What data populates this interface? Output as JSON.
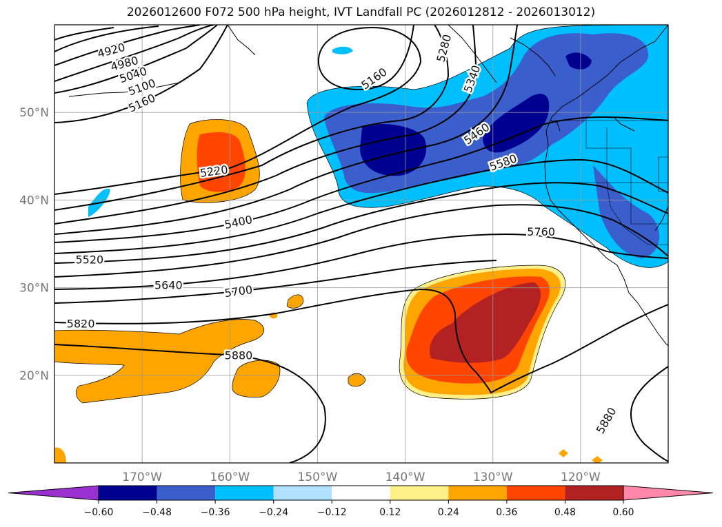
{
  "title": "2026012600 F072 500 hPa height, IVT Landfall PC (2026012812 - 2026013012)",
  "map": {
    "lon_range": [
      -180,
      -110
    ],
    "lat_range": [
      10,
      60
    ],
    "lon_ticks": [
      {
        "lon": -170,
        "label": "170°W"
      },
      {
        "lon": -160,
        "label": "160°W"
      },
      {
        "lon": -150,
        "label": "150°W"
      },
      {
        "lon": -140,
        "label": "140°W"
      },
      {
        "lon": -130,
        "label": "130°W"
      },
      {
        "lon": -120,
        "label": "120°W"
      }
    ],
    "lat_ticks": [
      {
        "lat": 20,
        "label": "20°N"
      },
      {
        "lat": 30,
        "label": "30°N"
      },
      {
        "lat": 40,
        "label": "40°N"
      },
      {
        "lat": 50,
        "label": "50°N"
      }
    ],
    "grid": true
  },
  "contour_labels": [
    {
      "text": "4920",
      "lon": -173.5,
      "lat": 57.0,
      "angle": -15
    },
    {
      "text": "4980",
      "lon": -172.0,
      "lat": 55.5,
      "angle": -15
    },
    {
      "text": "5040",
      "lon": -171.0,
      "lat": 54.2,
      "angle": -18
    },
    {
      "text": "5100",
      "lon": -170.0,
      "lat": 52.8,
      "angle": -20
    },
    {
      "text": "5160",
      "lon": -170.0,
      "lat": 51.0,
      "angle": -25
    },
    {
      "text": "5160",
      "lon": -143.5,
      "lat": 53.8,
      "angle": -35
    },
    {
      "text": "5220",
      "lon": -161.8,
      "lat": 43.2,
      "angle": -8
    },
    {
      "text": "5280",
      "lon": -135.5,
      "lat": 57.3,
      "angle": -75
    },
    {
      "text": "5340",
      "lon": -132.3,
      "lat": 53.8,
      "angle": -70
    },
    {
      "text": "5400",
      "lon": -159.0,
      "lat": 37.4,
      "angle": -12
    },
    {
      "text": "5460",
      "lon": -131.8,
      "lat": 47.5,
      "angle": -35
    },
    {
      "text": "5520",
      "lon": -176.0,
      "lat": 33.1,
      "angle": 0
    },
    {
      "text": "5580",
      "lon": -128.8,
      "lat": 44.2,
      "angle": -20
    },
    {
      "text": "5640",
      "lon": -167.0,
      "lat": 30.2,
      "angle": 0
    },
    {
      "text": "5700",
      "lon": -159.0,
      "lat": 29.5,
      "angle": -8
    },
    {
      "text": "5760",
      "lon": -124.5,
      "lat": 36.3,
      "angle": 0
    },
    {
      "text": "5820",
      "lon": -177.0,
      "lat": 25.8,
      "angle": 0
    },
    {
      "text": "5880",
      "lon": -159.0,
      "lat": 22.2,
      "angle": 0
    },
    {
      "text": "5880",
      "lon": -117.0,
      "lat": 14.8,
      "angle": -60
    }
  ],
  "colorbar": {
    "ticks": [
      "−0.60",
      "−0.48",
      "−0.36",
      "−0.24",
      "−0.12",
      "0.12",
      "0.24",
      "0.36",
      "0.48",
      "0.60"
    ],
    "colors": [
      "#9b30d0",
      "#000090",
      "#3a5fcd",
      "#00bfff",
      "#b0e2ff",
      "#ffffff",
      "#fff08a",
      "#ffa500",
      "#ff4500",
      "#b22222",
      "#ff88aa"
    ]
  }
}
